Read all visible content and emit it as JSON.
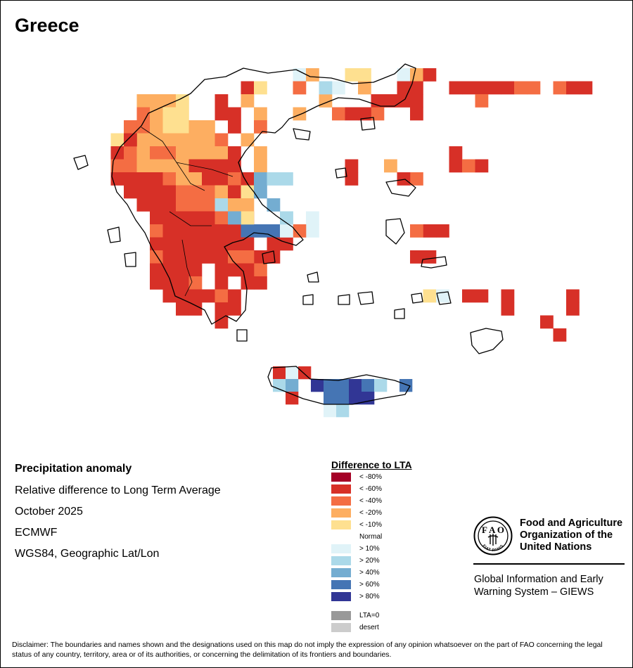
{
  "title": "Greece",
  "info": {
    "heading": "Precipitation anomaly",
    "subtitle": "Relative difference to Long Term Average",
    "period": "October 2025",
    "source": "ECMWF",
    "projection": "WGS84, Geographic Lat/Lon"
  },
  "legend": {
    "title": "Difference to LTA",
    "classes": [
      {
        "label": "< -80%",
        "color": "#a50026"
      },
      {
        "label": "< -60%",
        "color": "#d73027"
      },
      {
        "label": "< -40%",
        "color": "#f46d43"
      },
      {
        "label": "< -20%",
        "color": "#fdae61"
      },
      {
        "label": "< -10%",
        "color": "#fee090"
      },
      {
        "label": "Normal",
        "color": "#ffffff"
      },
      {
        "label": "> 10%",
        "color": "#e0f3f8"
      },
      {
        "label": "> 20%",
        "color": "#abd9e9"
      },
      {
        "label": "> 40%",
        "color": "#74add1"
      },
      {
        "label": "> 60%",
        "color": "#4575b4"
      },
      {
        "label": "> 80%",
        "color": "#313695"
      }
    ],
    "special": [
      {
        "label": "LTA=0",
        "color": "#999999"
      },
      {
        "label": "desert",
        "color": "#cccccc"
      }
    ]
  },
  "fao": {
    "name_line1": "Food and Agriculture",
    "name_line2": "Organization of the",
    "name_line3": "United Nations",
    "system_line1": "Global Information and Early",
    "system_line2": "Warning System – GIEWS",
    "logo_text": "FIAT PANIS"
  },
  "disclaimer": "Disclaimer: The boundaries and names shown and the designations used on this map do not imply the expression of any opinion whatsoever on the part of FAO concerning the legal status of any country, territory, area or of its authorities, or concerning the delimitation of its frontiers and boundaries."
}
